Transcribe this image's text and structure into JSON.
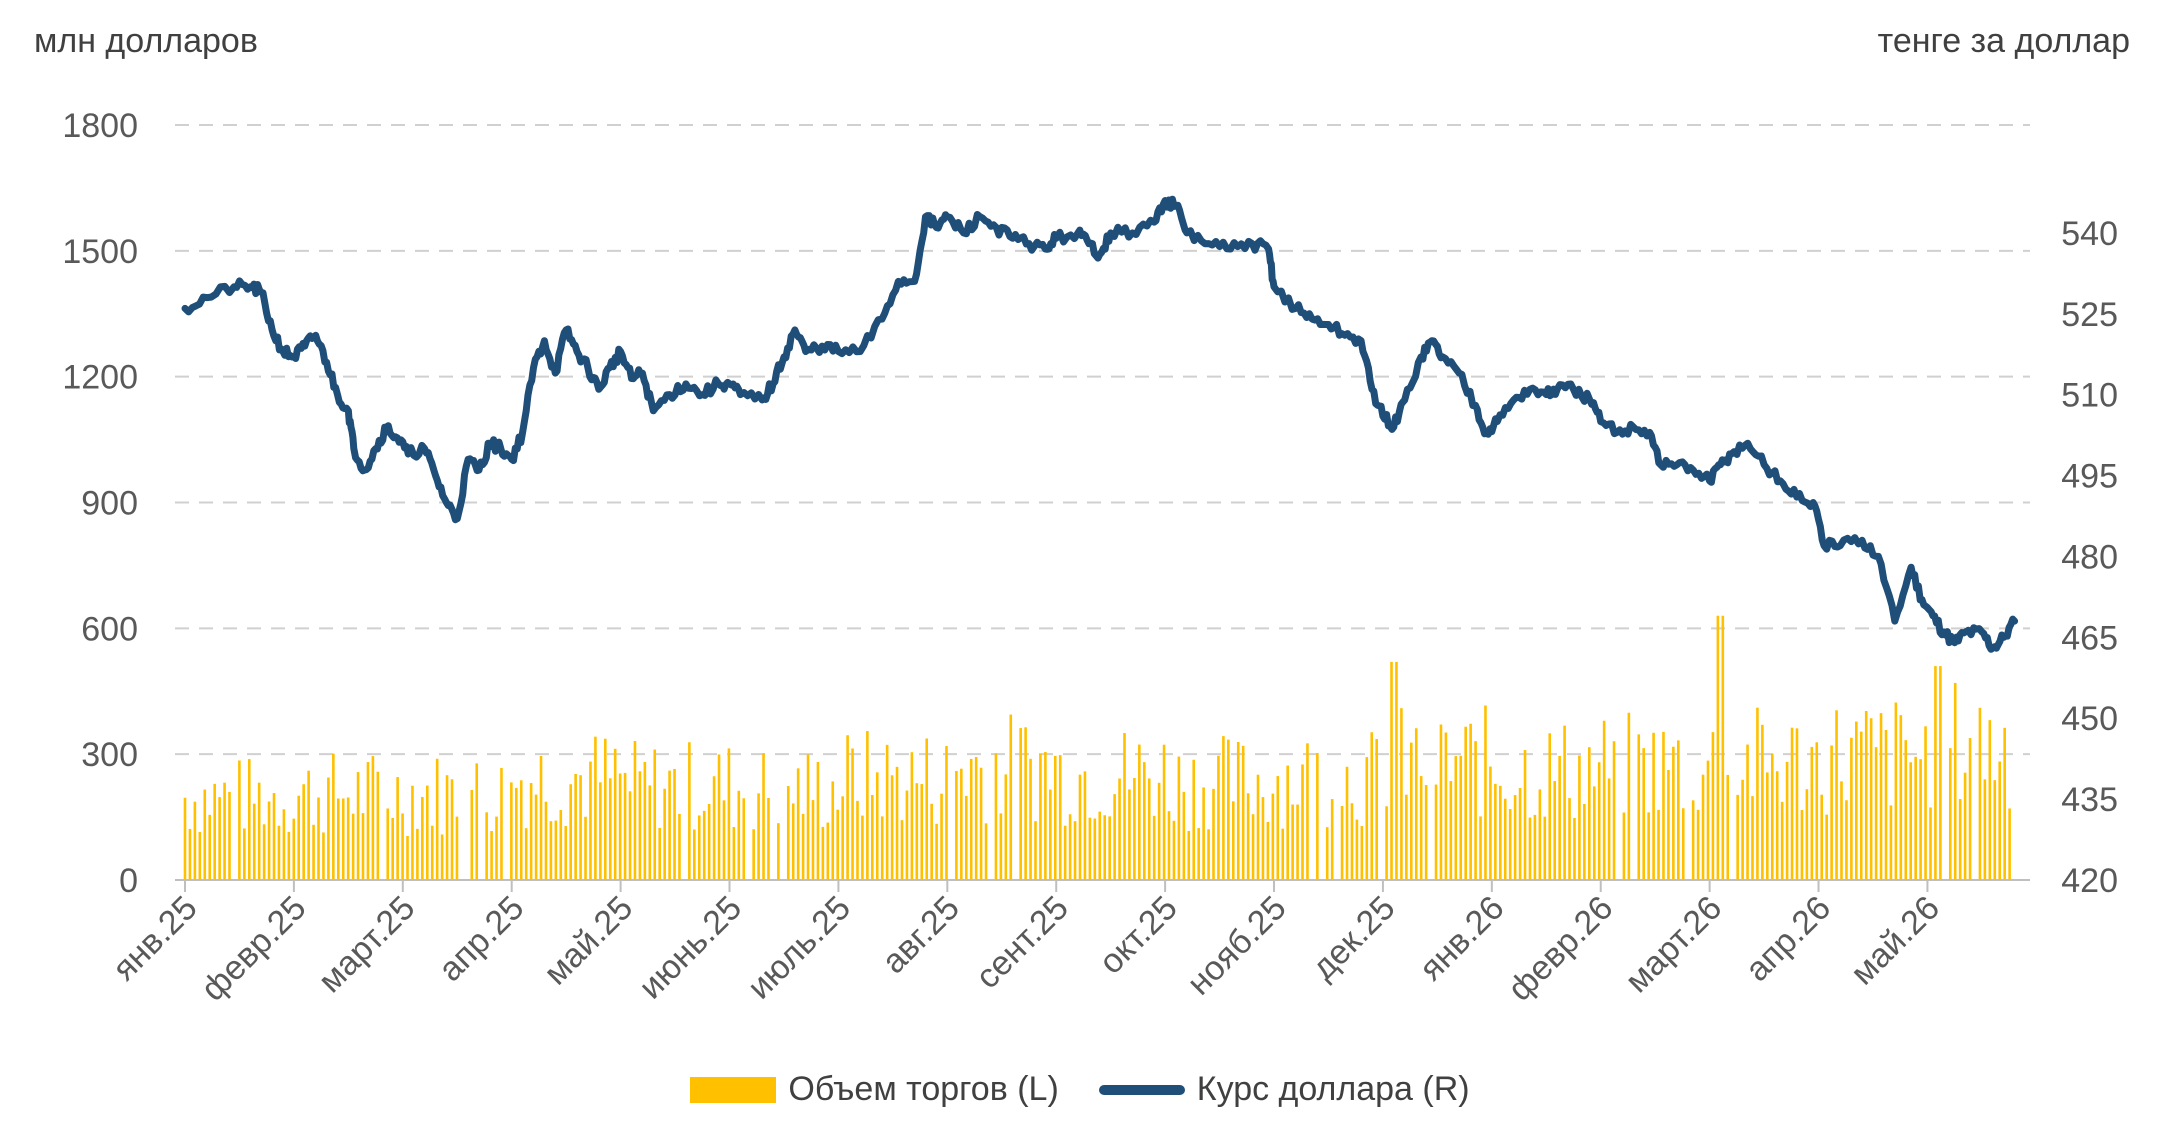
{
  "chart_data": {
    "type": "bar+line",
    "left_axis_label": "млн долларов",
    "right_axis_label": "тенге за доллар",
    "left_ylim": [
      0,
      1800
    ],
    "left_ticks": [
      "0",
      "300",
      "600",
      "900",
      "1200",
      "1500",
      "1800"
    ],
    "right_ylim": [
      420,
      560
    ],
    "right_ticks": [
      "420",
      "435",
      "450",
      "465",
      "480",
      "495",
      "510",
      "525",
      "540"
    ],
    "x_tick_labels": [
      "янв.25",
      "февр.25",
      "март.25",
      "апр.25",
      "май.25",
      "июнь.25",
      "июль.25",
      "авг.25",
      "сент.25",
      "окт.25",
      "нояб.25",
      "дек.25",
      "янв.26",
      "февр.26",
      "март.26",
      "апр.26",
      "май.26"
    ],
    "grid": "horizontal dashed",
    "legend_placement": "bottom",
    "series": [
      {
        "name": "Объем торгов (L)",
        "type": "bar",
        "axis": "left",
        "color": "#FFC000",
        "monthly_levels": [
          220,
          230,
          230,
          270,
          250,
          240,
          270,
          300,
          280,
          260,
          270,
          310,
          290,
          300,
          310,
          330,
          360
        ],
        "peaks": [
          {
            "month": "дек.25",
            "value": 520
          },
          {
            "month": "март.26",
            "value": 630
          },
          {
            "month": "май.26",
            "value": 510
          }
        ]
      },
      {
        "name": "Курс доллара (R)",
        "type": "line",
        "axis": "right",
        "color": "#1F4E79",
        "points": [
          [
            0,
            526
          ],
          [
            0.2,
            528
          ],
          [
            0.45,
            530
          ],
          [
            0.6,
            530
          ],
          [
            0.7,
            529
          ],
          [
            0.8,
            522
          ],
          [
            0.9,
            518
          ],
          [
            1.0,
            517
          ],
          [
            1.1,
            519
          ],
          [
            1.2,
            521
          ],
          [
            1.3,
            516
          ],
          [
            1.4,
            510
          ],
          [
            1.5,
            507
          ],
          [
            1.55,
            500
          ],
          [
            1.65,
            496
          ],
          [
            1.75,
            500
          ],
          [
            1.85,
            504
          ],
          [
            1.95,
            502
          ],
          [
            2.05,
            499
          ],
          [
            2.2,
            500
          ],
          [
            2.3,
            495
          ],
          [
            2.4,
            490
          ],
          [
            2.5,
            487
          ],
          [
            2.6,
            498
          ],
          [
            2.7,
            496
          ],
          [
            2.8,
            501
          ],
          [
            2.9,
            500
          ],
          [
            3.0,
            498
          ],
          [
            3.1,
            503
          ],
          [
            3.2,
            515
          ],
          [
            3.3,
            520
          ],
          [
            3.4,
            514
          ],
          [
            3.5,
            522
          ],
          [
            3.6,
            518
          ],
          [
            3.7,
            515
          ],
          [
            3.8,
            511
          ],
          [
            3.9,
            515
          ],
          [
            4.0,
            518
          ],
          [
            4.1,
            513
          ],
          [
            4.2,
            514
          ],
          [
            4.3,
            507
          ],
          [
            4.45,
            510
          ],
          [
            4.6,
            512
          ],
          [
            4.75,
            510
          ],
          [
            4.9,
            512
          ],
          [
            5.0,
            512
          ],
          [
            5.1,
            510
          ],
          [
            5.3,
            509
          ],
          [
            5.4,
            512
          ],
          [
            5.5,
            517
          ],
          [
            5.6,
            522
          ],
          [
            5.7,
            518
          ],
          [
            5.85,
            519
          ],
          [
            6.0,
            518
          ],
          [
            6.2,
            518
          ],
          [
            6.4,
            524
          ],
          [
            6.55,
            531
          ],
          [
            6.7,
            531
          ],
          [
            6.8,
            543
          ],
          [
            6.9,
            541
          ],
          [
            7.0,
            543
          ],
          [
            7.15,
            540
          ],
          [
            7.3,
            543
          ],
          [
            7.45,
            541
          ],
          [
            7.6,
            539
          ],
          [
            7.75,
            538
          ],
          [
            7.9,
            537
          ],
          [
            8.0,
            539
          ],
          [
            8.2,
            540
          ],
          [
            8.3,
            538
          ],
          [
            8.4,
            536
          ],
          [
            8.5,
            540
          ],
          [
            8.7,
            540
          ],
          [
            8.9,
            542
          ],
          [
            9.0,
            546
          ],
          [
            9.1,
            545
          ],
          [
            9.2,
            540
          ],
          [
            9.4,
            538
          ],
          [
            9.6,
            537
          ],
          [
            9.8,
            538
          ],
          [
            9.95,
            537
          ],
          [
            10.0,
            530
          ],
          [
            10.2,
            526
          ],
          [
            10.35,
            524
          ],
          [
            10.5,
            523
          ],
          [
            10.65,
            521
          ],
          [
            10.8,
            520
          ],
          [
            10.9,
            511
          ],
          [
            11.0,
            506
          ],
          [
            11.1,
            504
          ],
          [
            11.2,
            509
          ],
          [
            11.35,
            517
          ],
          [
            11.45,
            520
          ],
          [
            11.55,
            517
          ],
          [
            11.7,
            514
          ],
          [
            11.85,
            508
          ],
          [
            11.95,
            503
          ],
          [
            12.05,
            505
          ],
          [
            12.2,
            509
          ],
          [
            12.35,
            511
          ],
          [
            12.5,
            510
          ],
          [
            12.6,
            511
          ],
          [
            12.75,
            511
          ],
          [
            12.9,
            509
          ],
          [
            13.0,
            505
          ],
          [
            13.15,
            503
          ],
          [
            13.3,
            504
          ],
          [
            13.45,
            503
          ],
          [
            13.55,
            497
          ],
          [
            13.7,
            497
          ],
          [
            13.85,
            496
          ],
          [
            14.0,
            494
          ],
          [
            14.1,
            497
          ],
          [
            14.2,
            499
          ],
          [
            14.35,
            501
          ],
          [
            14.5,
            497
          ],
          [
            14.65,
            494
          ],
          [
            14.8,
            491
          ],
          [
            14.95,
            490
          ],
          [
            15.05,
            482
          ],
          [
            15.2,
            482
          ],
          [
            15.4,
            483
          ],
          [
            15.55,
            480
          ],
          [
            15.7,
            468
          ],
          [
            15.85,
            478
          ],
          [
            15.95,
            472
          ],
          [
            16.05,
            469
          ],
          [
            16.15,
            466
          ],
          [
            16.25,
            464
          ],
          [
            16.35,
            466
          ],
          [
            16.5,
            466
          ],
          [
            16.6,
            463
          ],
          [
            16.7,
            465
          ],
          [
            16.8,
            468
          ]
        ]
      }
    ]
  }
}
